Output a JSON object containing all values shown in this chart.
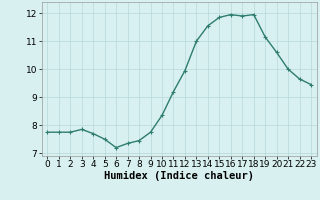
{
  "x": [
    0,
    1,
    2,
    3,
    4,
    5,
    6,
    7,
    8,
    9,
    10,
    11,
    12,
    13,
    14,
    15,
    16,
    17,
    18,
    19,
    20,
    21,
    22,
    23
  ],
  "y": [
    7.75,
    7.75,
    7.75,
    7.85,
    7.7,
    7.5,
    7.2,
    7.35,
    7.45,
    7.75,
    8.35,
    9.2,
    9.95,
    11.0,
    11.55,
    11.85,
    11.95,
    11.9,
    11.95,
    11.15,
    10.6,
    10.0,
    9.65,
    9.45
  ],
  "line_color": "#2e7d6e",
  "marker": "+",
  "marker_size": 3,
  "linewidth": 1.0,
  "bg_color": "#d8f0f0",
  "grid_color": "#b8d8d8",
  "xlabel": "Humidex (Indice chaleur)",
  "ylim": [
    6.9,
    12.4
  ],
  "xlim": [
    -0.5,
    23.5
  ],
  "yticks": [
    7,
    8,
    9,
    10,
    11,
    12
  ],
  "xticks": [
    0,
    1,
    2,
    3,
    4,
    5,
    6,
    7,
    8,
    9,
    10,
    11,
    12,
    13,
    14,
    15,
    16,
    17,
    18,
    19,
    20,
    21,
    22,
    23
  ],
  "tick_fontsize": 6.5,
  "xlabel_fontsize": 7.5,
  "xlabel_weight": "bold"
}
